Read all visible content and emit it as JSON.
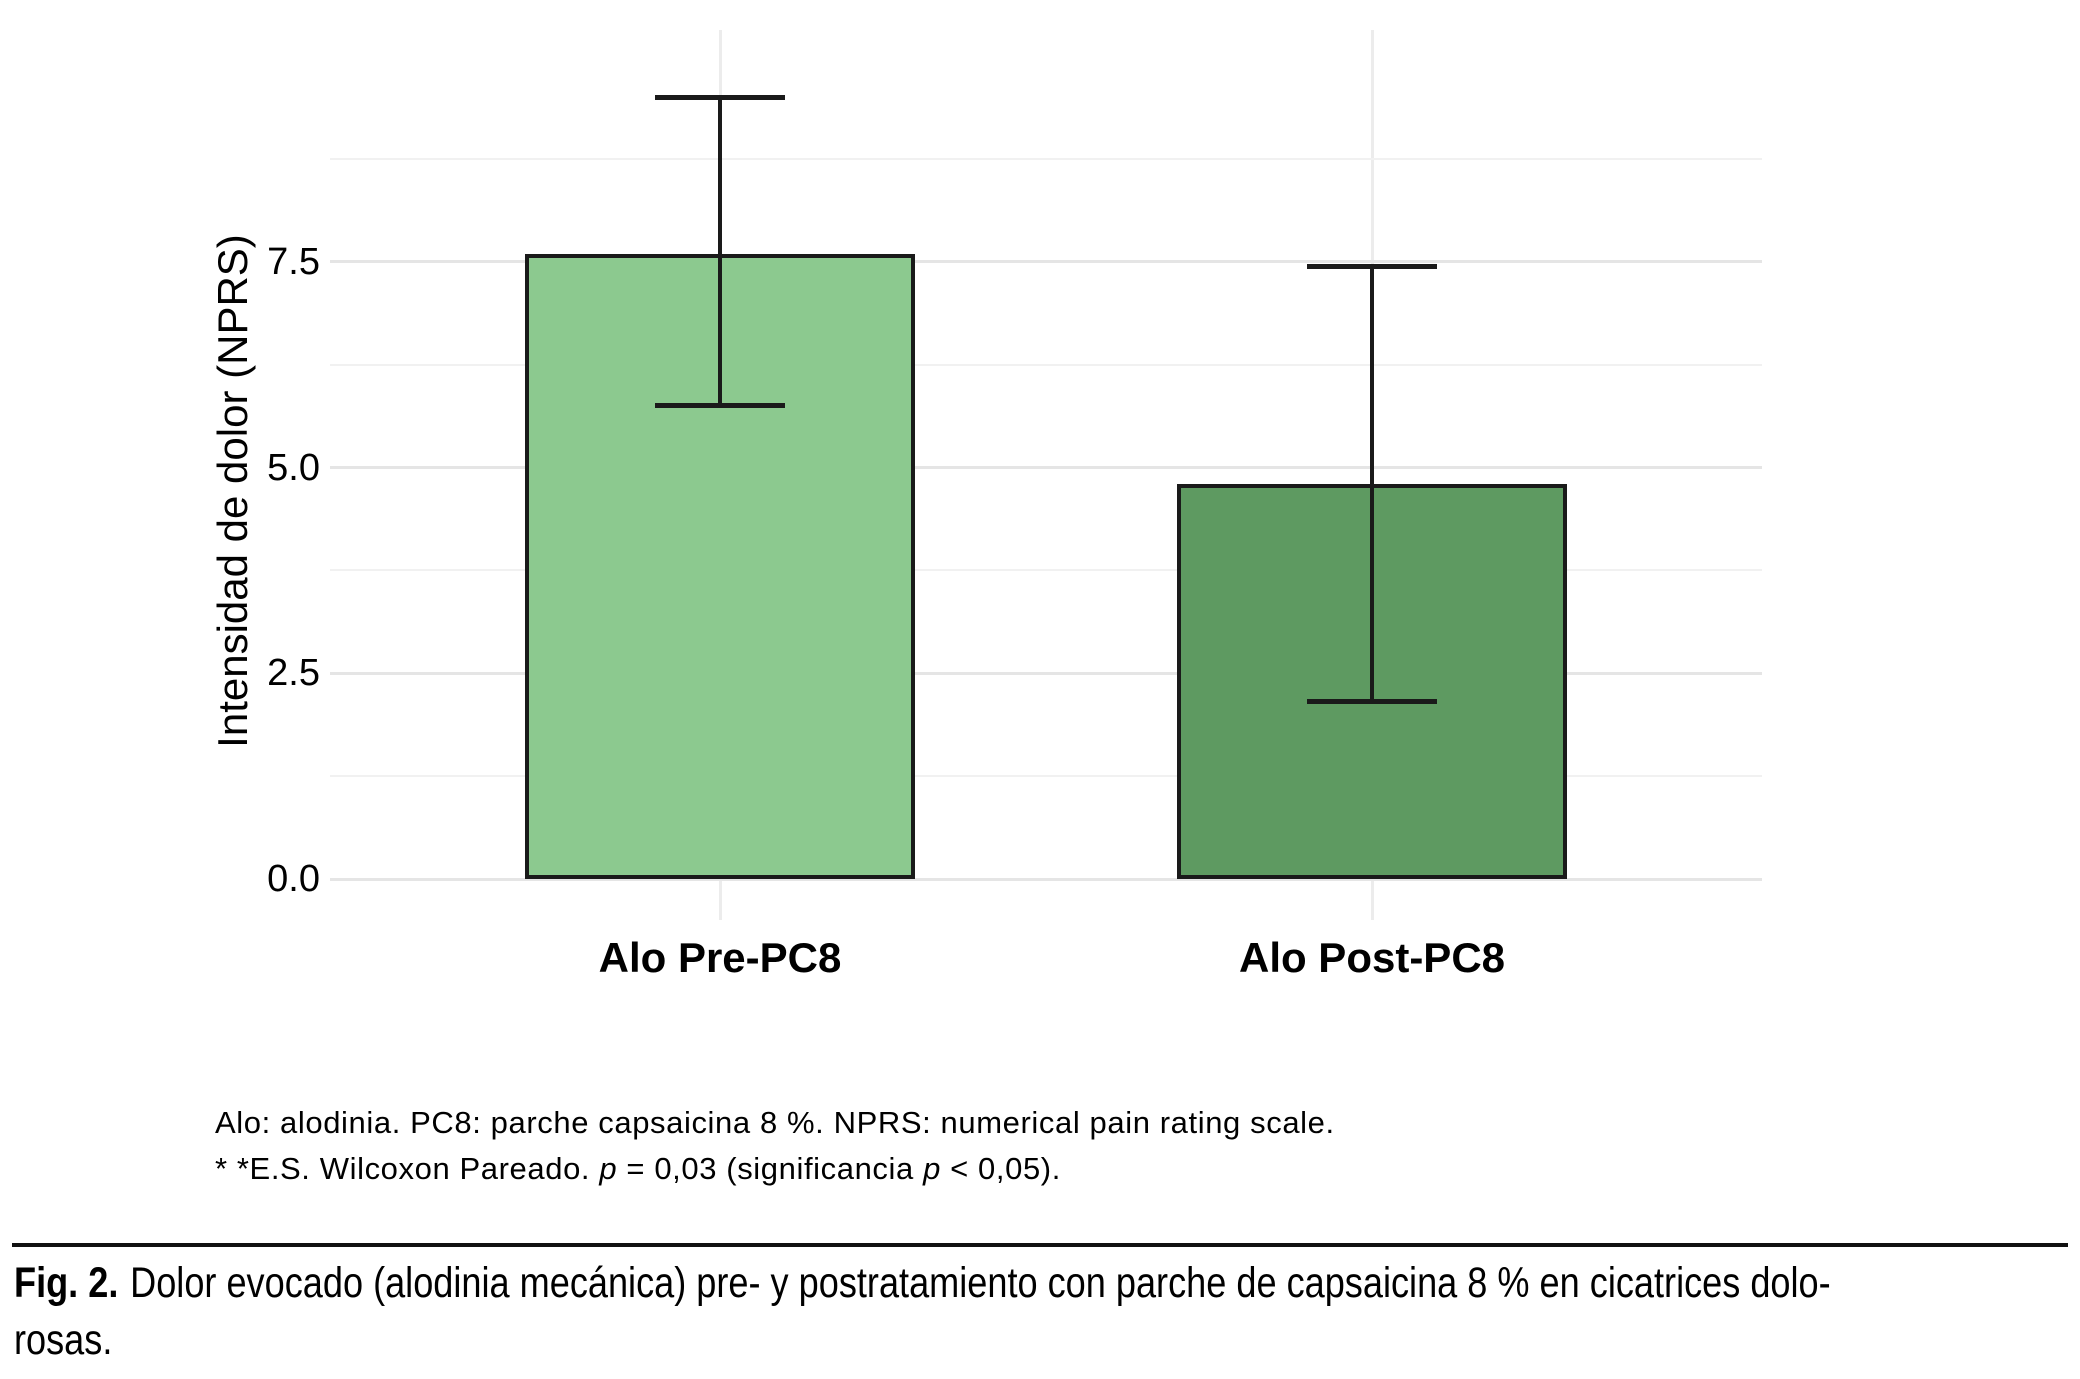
{
  "chart_data": {
    "type": "bar",
    "categories": [
      "Alo Pre-PC8",
      "Alo Post-PC8"
    ],
    "values": [
      7.6,
      4.8
    ],
    "error_bars": [
      {
        "low": 5.75,
        "high": 9.5
      },
      {
        "low": 2.15,
        "high": 7.45
      }
    ],
    "bar_colors": [
      "#8CC98F",
      "#5E9A61"
    ],
    "bar_edge_color": "#1A1A1A",
    "title": "",
    "xlabel": "",
    "ylabel": "Intensidad de dolor (NPRS)",
    "ytick_labels": [
      "0.0",
      "2.5",
      "5.0",
      "7.5"
    ],
    "ytick_values": [
      0,
      2.5,
      5,
      7.5
    ],
    "minor_grid_values": [
      1.25,
      3.75,
      6.25,
      8.75
    ],
    "ylim": [
      0,
      10.3
    ],
    "grid": "horizontal major+minor, vertical line at each category center",
    "legend": "none",
    "colors": {
      "major_grid": "#E5E5E5",
      "minor_grid": "#F1F1F1",
      "vertical_grid": "#ECECEC",
      "background": "#FFFFFF"
    }
  },
  "footnotes": {
    "line1": "Alo: alodinia. PC8: parche capsaicina 8 %. NPRS: numerical pain rating scale.",
    "line2_prefix": "* *E.S. Wilcoxon Pareado. ",
    "line2_p1": "p",
    "line2_mid": " = 0,03 (significancia ",
    "line2_p2": "p",
    "line2_suffix": " < 0,05)."
  },
  "figure": {
    "caption_label": "Fig. 2.",
    "caption_line1": "Dolor evocado (alodinia mecánica) pre- y postratamiento con parche de capsaicina 8 % en cicatrices dolo-",
    "caption_line2": "rosas."
  }
}
